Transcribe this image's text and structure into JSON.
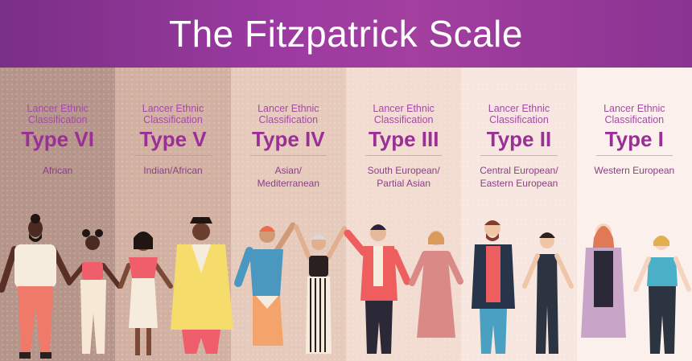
{
  "title": "The Fitzpatrick Scale",
  "columns": [
    {
      "label": "Lancer Ethnic Classification",
      "label_l1": "Lancer Ethnic",
      "label_l2": "Classification",
      "type": "Type VI",
      "origin_l1": "African",
      "origin_l2": "",
      "bg": "#b6958b"
    },
    {
      "label": "Lancer Ethnic Classification",
      "label_l1": "Lancer Ethnic",
      "label_l2": "Classification",
      "type": "Type V",
      "origin_l1": "Indian/African",
      "origin_l2": "",
      "bg": "#d2b1a3"
    },
    {
      "label": "Lancer Ethnic Classification",
      "label_l1": "Lancer Ethnic",
      "label_l2": "Classification",
      "type": "Type IV",
      "origin_l1": "Asian/",
      "origin_l2": "Mediterranean",
      "bg": "#e6cbbd"
    },
    {
      "label": "Lancer Ethnic Classification",
      "label_l1": "Lancer Ethnic",
      "label_l2": "Classification",
      "type": "Type III",
      "origin_l1": "South European/",
      "origin_l2": "Partial Asian",
      "bg": "#f2dcd1"
    },
    {
      "label": "Lancer Ethnic Classification",
      "label_l1": "Lancer Ethnic",
      "label_l2": "Classification",
      "type": "Type II",
      "origin_l1": "Central European/",
      "origin_l2": "Eastern European",
      "bg": "#f7e6df"
    },
    {
      "label": "Lancer Ethnic Classification",
      "label_l1": "Lancer Ethnic",
      "label_l2": "Classification",
      "type": "Type I",
      "origin_l1": "Western European",
      "origin_l2": "",
      "bg": "#fbf0ec"
    }
  ],
  "colors": {
    "header_purple": "#8f3593",
    "type_text": "#9a2f96"
  }
}
